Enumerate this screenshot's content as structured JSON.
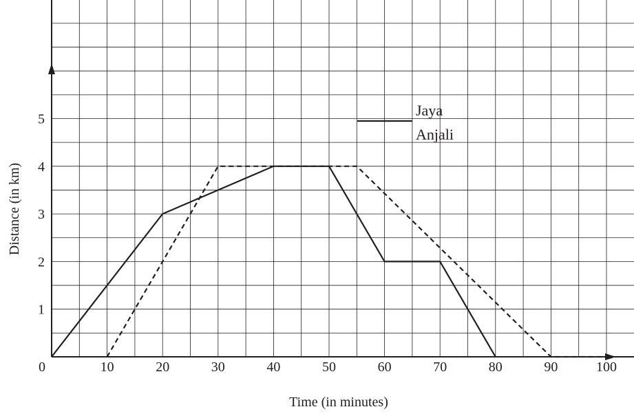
{
  "chart_data": {
    "type": "line",
    "xlabel": "Time (in minutes)",
    "ylabel": "Distance (in km)",
    "origin_label": "0",
    "xlim": [
      0,
      105
    ],
    "ylim": [
      0,
      7.5
    ],
    "x_ticks": [
      "10",
      "20",
      "30",
      "40",
      "50",
      "60",
      "70",
      "80",
      "90",
      "100"
    ],
    "y_ticks": [
      "1",
      "2",
      "3",
      "4",
      "5"
    ],
    "grid": true,
    "legend_position": "upper-right",
    "series": [
      {
        "name": "Jaya",
        "style": "solid",
        "color": "#231f20",
        "points": [
          [
            0,
            0
          ],
          [
            20,
            3
          ],
          [
            40,
            4
          ],
          [
            50,
            4
          ],
          [
            60,
            2
          ],
          [
            70,
            2
          ],
          [
            80,
            0
          ]
        ]
      },
      {
        "name": "Anjali",
        "style": "dashed",
        "color": "#231f20",
        "points": [
          [
            10,
            0
          ],
          [
            30,
            4
          ],
          [
            55,
            4
          ],
          [
            90,
            0
          ],
          [
            100,
            0
          ]
        ]
      }
    ]
  }
}
